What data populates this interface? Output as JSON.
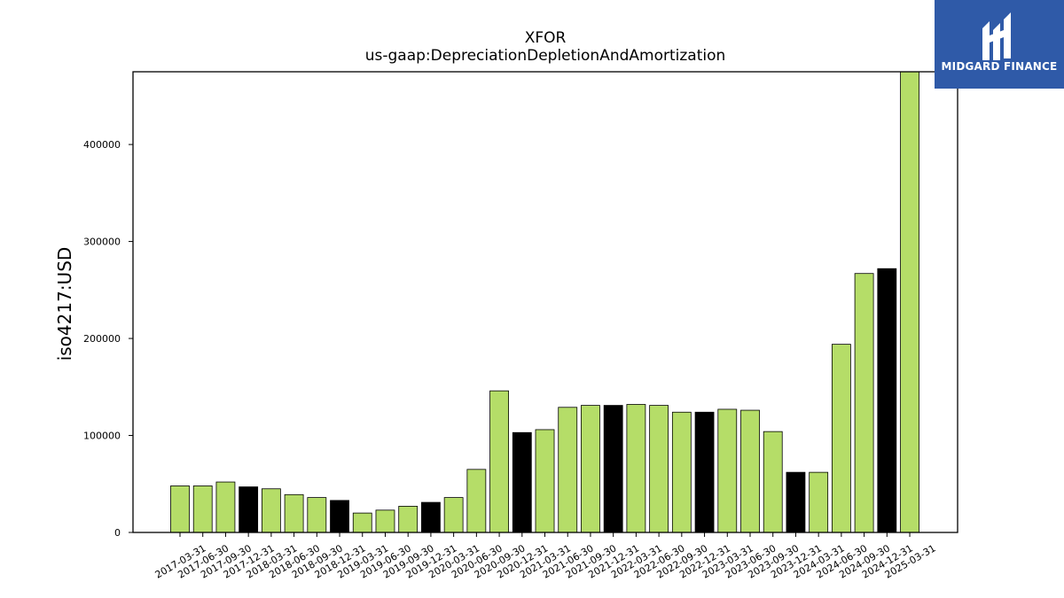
{
  "brand": {
    "name": "MIDGARD FINANCE",
    "bg_color": "#2f5aa8"
  },
  "chart_data": {
    "type": "bar",
    "title": "XFOR",
    "subtitle": "us-gaap:DepreciationDepletionAndAmortization",
    "ylabel": "iso4217:USD",
    "xlabel": "",
    "ylim": [
      0,
      475000
    ],
    "yticks": [
      0,
      100000,
      200000,
      300000,
      400000
    ],
    "grid": false,
    "colors": {
      "highlight": "#000000",
      "default": "#b5dd68"
    },
    "categories": [
      "2017-03-31",
      "2017-06-30",
      "2017-09-30",
      "2017-12-31",
      "2018-03-31",
      "2018-06-30",
      "2018-09-30",
      "2018-12-31",
      "2019-03-31",
      "2019-06-30",
      "2019-09-30",
      "2019-12-31",
      "2020-03-31",
      "2020-06-30",
      "2020-09-30",
      "2020-12-31",
      "2021-03-31",
      "2021-06-30",
      "2021-09-30",
      "2021-12-31",
      "2022-03-31",
      "2022-06-30",
      "2022-09-30",
      "2022-12-31",
      "2023-03-31",
      "2023-06-30",
      "2023-09-30",
      "2023-12-31",
      "2024-03-31",
      "2024-06-30",
      "2024-09-30",
      "2024-12-31",
      "2025-03-31"
    ],
    "values": [
      48000,
      48000,
      52000,
      47000,
      45000,
      39000,
      36000,
      33000,
      20000,
      23000,
      27000,
      31000,
      36000,
      65000,
      146000,
      103000,
      106000,
      129000,
      131000,
      131000,
      132000,
      131000,
      124000,
      124000,
      127000,
      126000,
      104000,
      62000,
      62000,
      194000,
      267000,
      272000,
      475000
    ],
    "highlighted": [
      false,
      false,
      false,
      true,
      false,
      false,
      false,
      true,
      false,
      false,
      false,
      true,
      false,
      false,
      false,
      true,
      false,
      false,
      false,
      true,
      false,
      false,
      false,
      true,
      false,
      false,
      false,
      true,
      false,
      false,
      false,
      true,
      false
    ]
  }
}
